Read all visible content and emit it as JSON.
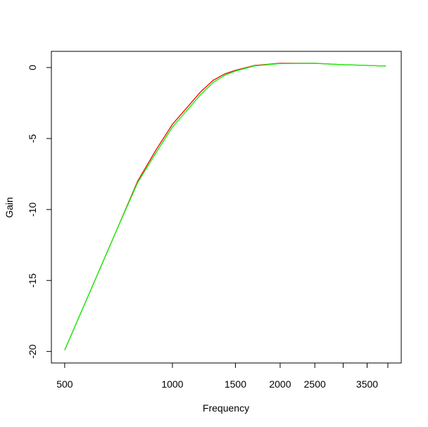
{
  "chart_data": {
    "type": "line",
    "x_label": "Frequency",
    "y_label": "Gain",
    "x": [
      500,
      600,
      700,
      800,
      900,
      1000,
      1100,
      1200,
      1300,
      1400,
      1500,
      1700,
      2000,
      2500,
      3000,
      3500,
      3950
    ],
    "series": [
      {
        "name": "red",
        "color": "#ff0000",
        "values": [
          -19.9,
          -15.3,
          -11.4,
          -8.0,
          -5.8,
          -4.0,
          -2.8,
          -1.7,
          -0.9,
          -0.45,
          -0.2,
          0.15,
          0.3,
          0.3,
          0.2,
          0.15,
          0.1
        ]
      },
      {
        "name": "green",
        "color": "#00ff00",
        "values": [
          -19.9,
          -15.3,
          -11.4,
          -8.1,
          -6.0,
          -4.2,
          -3.0,
          -1.9,
          -1.05,
          -0.55,
          -0.25,
          0.12,
          0.28,
          0.3,
          0.2,
          0.15,
          0.1
        ]
      }
    ],
    "xlog": true,
    "xlim": [
      459,
      4360
    ],
    "ylim": [
      -20.81,
      1.14
    ],
    "xticks": [
      500,
      1000,
      1500,
      2000,
      2500,
      {
        "value": 3000,
        "label": null
      },
      3500,
      {
        "value": 4000,
        "label": null
      }
    ],
    "yticks": [
      -20,
      -15,
      -10,
      -5,
      0
    ]
  }
}
